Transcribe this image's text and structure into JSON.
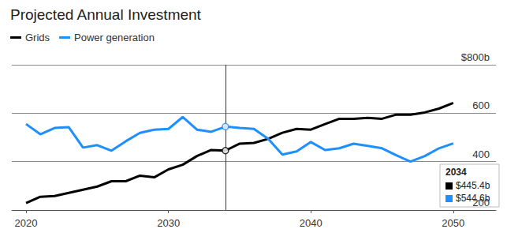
{
  "chart_data": {
    "type": "line",
    "title": "Projected Annual Investment",
    "x": [
      2020,
      2021,
      2022,
      2023,
      2024,
      2025,
      2026,
      2027,
      2028,
      2029,
      2030,
      2031,
      2032,
      2033,
      2034,
      2035,
      2036,
      2037,
      2038,
      2039,
      2040,
      2041,
      2042,
      2043,
      2044,
      2045,
      2046,
      2047,
      2048,
      2049,
      2050
    ],
    "series": [
      {
        "name": "Grids",
        "color": "#000000",
        "values": [
          229,
          255,
          258,
          271,
          284,
          297,
          319,
          319,
          342,
          335,
          368,
          387,
          423,
          448,
          445.4,
          474,
          477,
          494,
          519,
          535,
          532,
          555,
          577,
          577,
          581,
          577,
          594,
          594,
          603,
          619,
          642
        ]
      },
      {
        "name": "Power generation",
        "color": "#1e8fff",
        "values": [
          555,
          513,
          539,
          542,
          458,
          468,
          445,
          484,
          519,
          532,
          535,
          584,
          532,
          523,
          544.6,
          539,
          535,
          494,
          429,
          442,
          481,
          448,
          455,
          474,
          465,
          455,
          426,
          400,
          423,
          455,
          475
        ]
      }
    ],
    "xlim": [
      2019,
      2053
    ],
    "xticks": [
      2020,
      2030,
      2040,
      2050
    ],
    "ylim": [
      200,
      800
    ],
    "yticks": [
      200,
      400,
      600,
      {
        "value": 800,
        "label": "$800b"
      }
    ],
    "grid": true,
    "legend": "top-left",
    "highlight": {
      "x": 2034,
      "values": [
        445.4,
        544.6
      ],
      "value_labels": [
        "$445.4b",
        "$544.6b"
      ]
    }
  }
}
